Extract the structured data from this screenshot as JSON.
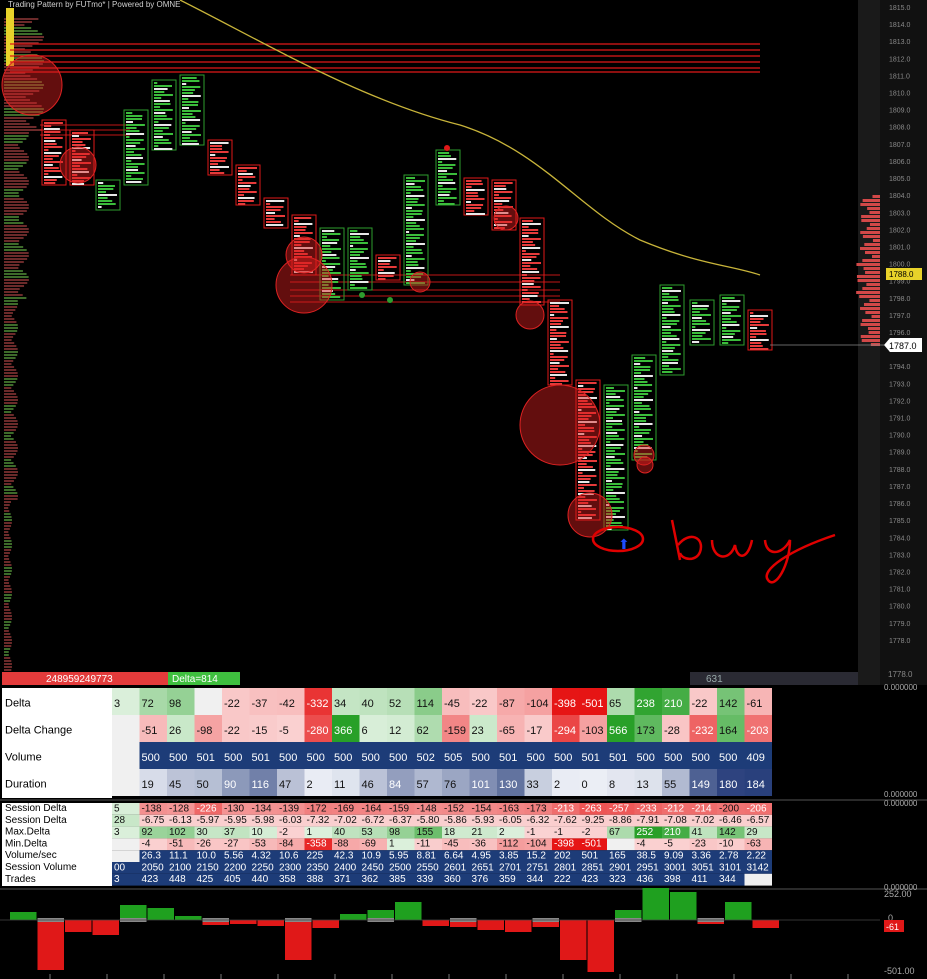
{
  "header": {
    "title": "Trading Pattern by FUTmo* | Powered by OMNE"
  },
  "price": {
    "current_label": "1787.0",
    "highlight_label": "1788.0",
    "bottom_label": "1778.0",
    "axis_ticks": [
      "1815.0",
      "1814.0",
      "1813.0",
      "1812.0",
      "1811.0",
      "1810.0",
      "1809.0",
      "1808.0",
      "1807.0",
      "1806.0",
      "1805.0",
      "1804.0",
      "1803.0",
      "1802.0",
      "1801.0",
      "1800.0",
      "1799.0",
      "1798.0",
      "1797.0",
      "1796.0",
      "1795.0",
      "1794.0",
      "1793.0",
      "1792.0",
      "1791.0",
      "1790.0",
      "1789.0",
      "1788.0",
      "1787.0",
      "1786.0",
      "1785.0",
      "1784.0",
      "1783.0",
      "1782.0",
      "1781.0",
      "1780.0",
      "1779.0",
      "1778.0"
    ]
  },
  "status_bar": {
    "left_value": "248959249773",
    "delta_label": "Delta=814",
    "right_value": "631"
  },
  "annotation": {
    "text": "buy"
  },
  "stats_table": {
    "rows": [
      {
        "label": "Delta",
        "values": [
          "3",
          "72",
          "98",
          "",
          "-22",
          "-37",
          "-42",
          "-332",
          "34",
          "40",
          "52",
          "114",
          "-45",
          "-22",
          "-87",
          "-104",
          "-398",
          "-501",
          "65",
          "238",
          "210",
          "-22",
          "142",
          "-61"
        ]
      },
      {
        "label": "Delta Change",
        "values": [
          "",
          "-51",
          "26",
          "-98",
          "-22",
          "-15",
          "-5",
          "-280",
          "366",
          "6",
          "12",
          "62",
          "-159",
          "23",
          "-65",
          "-17",
          "-294",
          "-103",
          "566",
          "173",
          "-28",
          "-232",
          "164",
          "-203"
        ]
      },
      {
        "label": "Volume",
        "values": [
          "",
          "500",
          "500",
          "501",
          "500",
          "501",
          "500",
          "500",
          "500",
          "500",
          "500",
          "502",
          "505",
          "500",
          "501",
          "500",
          "500",
          "501",
          "501",
          "500",
          "500",
          "500",
          "500",
          "409"
        ]
      },
      {
        "label": "Duration",
        "values": [
          "",
          "19",
          "45",
          "50",
          "90",
          "116",
          "47",
          "2",
          "11",
          "46",
          "84",
          "57",
          "76",
          "101",
          "130",
          "33",
          "2",
          "0",
          "8",
          "13",
          "55",
          "149",
          "180",
          "184"
        ]
      }
    ],
    "scale_top": "0.000000",
    "scale_bottom": "0.000000"
  },
  "session_table": {
    "rows": [
      {
        "label": "Session Delta",
        "values": [
          "5",
          "-138",
          "-128",
          "-226",
          "-130",
          "-134",
          "-139",
          "-172",
          "-169",
          "-164",
          "-159",
          "-148",
          "-152",
          "-154",
          "-163",
          "-173",
          "-213",
          "-263",
          "-257",
          "-233",
          "-212",
          "-214",
          "-200",
          "-206"
        ]
      },
      {
        "label": "Session Delta",
        "values": [
          "28",
          "-6.75",
          "-6.13",
          "-5.97",
          "-5.95",
          "-5.98",
          "-6.03",
          "-7.32",
          "-7.02",
          "-6.72",
          "-6.37",
          "-5.80",
          "-5.86",
          "-5.93",
          "-6.05",
          "-6.32",
          "-7.62",
          "-9.25",
          "-8.86",
          "-7.91",
          "-7.08",
          "-7.02",
          "-6.46",
          "-6.57"
        ]
      },
      {
        "label": "Max.Delta",
        "values": [
          "3",
          "92",
          "102",
          "30",
          "37",
          "10",
          "-2",
          "1",
          "40",
          "53",
          "98",
          "155",
          "18",
          "21",
          "2",
          "-1",
          "-1",
          "-2",
          "67",
          "252",
          "210",
          "41",
          "142",
          "29"
        ]
      },
      {
        "label": "Min.Delta",
        "values": [
          "",
          "-4",
          "-51",
          "-26",
          "-27",
          "-53",
          "-84",
          "-358",
          "-88",
          "-69",
          "1",
          "-11",
          "-45",
          "-36",
          "-112",
          "-104",
          "-398",
          "-501",
          "",
          "-4",
          "-5",
          "-23",
          "-10",
          "-63"
        ]
      },
      {
        "label": "Volume/sec",
        "values": [
          "",
          "26.3",
          "11.1",
          "10.0",
          "5.56",
          "4.32",
          "10.6",
          "225",
          "42.3",
          "10.9",
          "5.95",
          "8.81",
          "6.64",
          "4.95",
          "3.85",
          "15.2",
          "202",
          "501",
          "165",
          "38.5",
          "9.09",
          "3.36",
          "2.78",
          "2.22"
        ]
      },
      {
        "label": "Session Volume",
        "values": [
          "00",
          "2050",
          "2100",
          "2150",
          "2200",
          "2250",
          "2300",
          "2350",
          "2400",
          "2450",
          "2500",
          "2550",
          "2601",
          "2651",
          "2701",
          "2751",
          "2801",
          "2851",
          "2901",
          "2951",
          "3001",
          "3051",
          "3101",
          "3142"
        ]
      },
      {
        "label": "Trades",
        "values": [
          "3",
          "423",
          "448",
          "425",
          "405",
          "440",
          "358",
          "388",
          "371",
          "362",
          "385",
          "339",
          "360",
          "376",
          "359",
          "344",
          "222",
          "423",
          "323",
          "436",
          "398",
          "411",
          "344",
          ""
        ]
      }
    ],
    "scale": "0.000000"
  },
  "histogram": {
    "top_label": "252.00",
    "bottom_label": "-501.00",
    "zero_label": "0",
    "current_label": "-61"
  },
  "colors": {
    "bull": "#2e9e2e",
    "bear": "#e01818",
    "grid_bg": "#000000",
    "table_blue": "#1d3c78",
    "ma_line": "#c8b43a"
  }
}
